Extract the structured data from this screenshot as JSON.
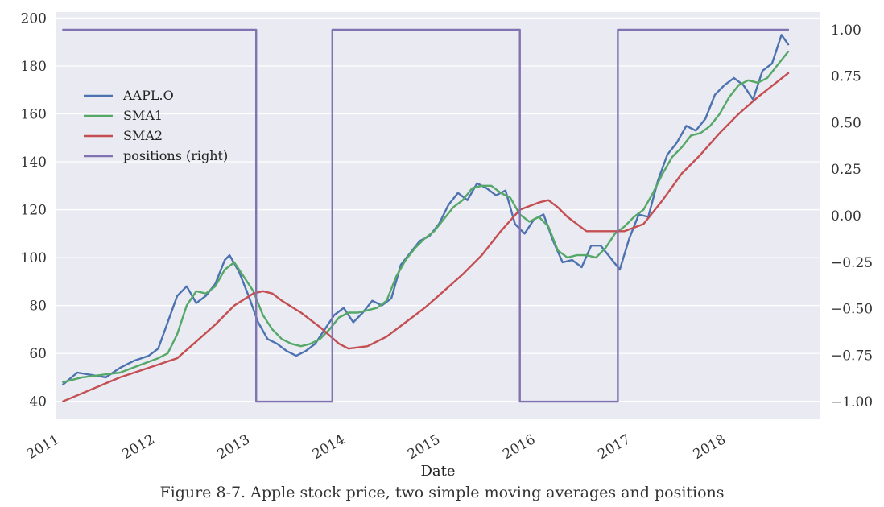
{
  "chart_data": {
    "type": "line",
    "title": "",
    "xlabel": "Date",
    "ylabel": "",
    "y2label": "",
    "xlim": [
      2010.93,
      2018.95
    ],
    "ylim": [
      32.5,
      202.5
    ],
    "y2lim": [
      -1.095,
      1.095
    ],
    "x_ticks": [
      2011,
      2012,
      2013,
      2014,
      2015,
      2016,
      2017,
      2018
    ],
    "x_tick_labels": [
      "2011",
      "2012",
      "2013",
      "2014",
      "2015",
      "2016",
      "2017",
      "2018"
    ],
    "y_ticks": [
      40,
      60,
      80,
      100,
      120,
      140,
      160,
      180,
      200
    ],
    "y_tick_labels": [
      "40",
      "60",
      "80",
      "100",
      "120",
      "140",
      "160",
      "180",
      "200"
    ],
    "y2_ticks": [
      -1.0,
      -0.75,
      -0.5,
      -0.25,
      0.0,
      0.25,
      0.5,
      0.75,
      1.0
    ],
    "y2_tick_labels": [
      "−1.00",
      "−0.75",
      "−0.50",
      "−0.25",
      "0.00",
      "0.25",
      "0.50",
      "0.75",
      "1.00"
    ],
    "grid": true,
    "legend_position": "upper-left",
    "colors": {
      "background": "#EAEAF2",
      "grid": "#FFFFFF"
    },
    "series": [
      {
        "name": "AAPL.O",
        "axis": "left",
        "color": "#4C72B0",
        "x": [
          2011.0,
          2011.15,
          2011.3,
          2011.45,
          2011.6,
          2011.75,
          2011.9,
          2012.0,
          2012.1,
          2012.2,
          2012.3,
          2012.4,
          2012.5,
          2012.6,
          2012.7,
          2012.75,
          2012.85,
          2012.95,
          2013.05,
          2013.15,
          2013.25,
          2013.35,
          2013.45,
          2013.55,
          2013.65,
          2013.75,
          2013.85,
          2013.95,
          2014.05,
          2014.15,
          2014.25,
          2014.35,
          2014.45,
          2014.55,
          2014.65,
          2014.75,
          2014.85,
          2014.95,
          2015.05,
          2015.15,
          2015.25,
          2015.35,
          2015.45,
          2015.55,
          2015.65,
          2015.75,
          2015.85,
          2015.95,
          2016.05,
          2016.15,
          2016.25,
          2016.35,
          2016.45,
          2016.55,
          2016.65,
          2016.75,
          2016.85,
          2016.95,
          2017.05,
          2017.15,
          2017.25,
          2017.35,
          2017.45,
          2017.55,
          2017.65,
          2017.75,
          2017.85,
          2017.95,
          2018.05,
          2018.15,
          2018.25,
          2018.35,
          2018.45,
          2018.55,
          2018.62
        ],
        "values": [
          47,
          52,
          51,
          50,
          54,
          57,
          59,
          62,
          73,
          84,
          88,
          81,
          84,
          89,
          99,
          101,
          94,
          84,
          73,
          66,
          64,
          61,
          59,
          61,
          64,
          70,
          76,
          79,
          73,
          77,
          82,
          80,
          83,
          97,
          102,
          107,
          109,
          114,
          122,
          127,
          124,
          131,
          129,
          126,
          128,
          114,
          110,
          116,
          118,
          107,
          98,
          99,
          96,
          105,
          105,
          100,
          95,
          108,
          118,
          117,
          132,
          143,
          148,
          155,
          153,
          158,
          168,
          172,
          175,
          172,
          166,
          178,
          181,
          193,
          189
        ]
      },
      {
        "name": "SMA1",
        "axis": "left",
        "color": "#55A868",
        "x": [
          2011.0,
          2011.2,
          2011.4,
          2011.6,
          2011.8,
          2012.0,
          2012.1,
          2012.2,
          2012.3,
          2012.4,
          2012.5,
          2012.6,
          2012.7,
          2012.8,
          2012.9,
          2013.0,
          2013.1,
          2013.2,
          2013.3,
          2013.4,
          2013.5,
          2013.6,
          2013.7,
          2013.8,
          2013.9,
          2014.0,
          2014.1,
          2014.2,
          2014.3,
          2014.4,
          2014.5,
          2014.6,
          2014.7,
          2014.8,
          2014.9,
          2015.0,
          2015.1,
          2015.2,
          2015.3,
          2015.4,
          2015.5,
          2015.6,
          2015.7,
          2015.8,
          2015.9,
          2016.0,
          2016.1,
          2016.2,
          2016.3,
          2016.4,
          2016.5,
          2016.6,
          2016.7,
          2016.8,
          2016.9,
          2017.0,
          2017.1,
          2017.2,
          2017.3,
          2017.4,
          2017.5,
          2017.6,
          2017.7,
          2017.8,
          2017.9,
          2018.0,
          2018.1,
          2018.2,
          2018.3,
          2018.4,
          2018.5,
          2018.62
        ],
        "values": [
          48,
          50,
          51,
          52,
          55,
          58,
          60,
          68,
          80,
          86,
          85,
          88,
          95,
          98,
          92,
          86,
          76,
          70,
          66,
          64,
          63,
          64,
          66,
          70,
          75,
          77,
          77,
          78,
          79,
          82,
          92,
          99,
          104,
          108,
          111,
          116,
          121,
          124,
          129,
          130,
          130,
          127,
          125,
          118,
          115,
          117,
          113,
          103,
          100,
          101,
          101,
          100,
          104,
          110,
          113,
          117,
          120,
          127,
          135,
          142,
          146,
          151,
          152,
          155,
          160,
          167,
          172,
          174,
          173,
          175,
          180,
          186
        ]
      },
      {
        "name": "SMA2",
        "axis": "left",
        "color": "#C44E52",
        "x": [
          2011.0,
          2011.3,
          2011.6,
          2011.9,
          2012.2,
          2012.4,
          2012.6,
          2012.8,
          2013.0,
          2013.1,
          2013.2,
          2013.3,
          2013.5,
          2013.7,
          2013.9,
          2014.0,
          2014.2,
          2014.4,
          2014.6,
          2014.8,
          2015.0,
          2015.2,
          2015.4,
          2015.6,
          2015.8,
          2016.0,
          2016.1,
          2016.2,
          2016.3,
          2016.5,
          2016.7,
          2016.9,
          2017.1,
          2017.3,
          2017.5,
          2017.7,
          2017.9,
          2018.1,
          2018.3,
          2018.62
        ],
        "values": [
          40,
          45,
          50,
          54,
          58,
          65,
          72,
          80,
          85,
          86,
          85,
          82,
          77,
          71,
          64,
          62,
          63,
          67,
          73,
          79,
          86,
          93,
          101,
          111,
          120,
          123,
          124,
          121,
          117,
          111,
          111,
          111,
          114,
          124,
          135,
          143,
          152,
          160,
          167,
          177
        ]
      },
      {
        "name": "positions (right)",
        "axis": "right",
        "color": "#8172B2",
        "step": true,
        "x": [
          2011.0,
          2013.03,
          2013.03,
          2013.83,
          2013.83,
          2015.8,
          2015.8,
          2016.83,
          2016.83,
          2018.62
        ],
        "values": [
          1,
          1,
          -1,
          -1,
          1,
          1,
          -1,
          -1,
          1,
          1
        ]
      }
    ]
  },
  "caption": "Figure 8-7. Apple stock price, two simple moving averages and positions"
}
